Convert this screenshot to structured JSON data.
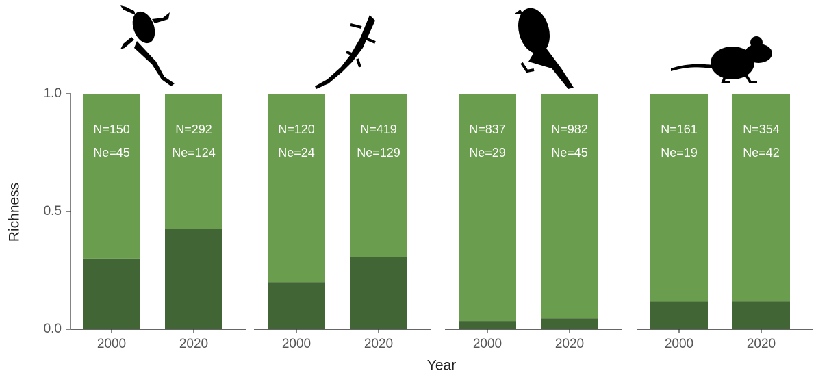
{
  "chart_data": {
    "type": "stacked_bar",
    "ylabel": "Richness",
    "xlabel": "Year",
    "ylim": [
      0,
      1
    ],
    "yticks": [
      {
        "value": 0,
        "label": "0.0"
      },
      {
        "value": 0.5,
        "label": "0.5"
      },
      {
        "value": 1,
        "label": "1.0"
      }
    ],
    "panels": [
      {
        "categories": [
          "2000",
          "2020"
        ],
        "n_labels": [
          "N=150",
          "N=292"
        ],
        "ne_labels": [
          "Ne=45",
          "Ne=124"
        ],
        "series": [
          {
            "color": "#426536",
            "values": [
              0.3,
              0.4247
            ],
            "value_labels": [
              "30 %",
              "42.47 %"
            ]
          },
          {
            "color": "#6a9d4e",
            "values": [
              0.7,
              0.5753
            ]
          }
        ]
      },
      {
        "categories": [
          "2000",
          "2020"
        ],
        "n_labels": [
          "N=120",
          "N=419"
        ],
        "ne_labels": [
          "Ne=24",
          "Ne=129"
        ],
        "series": [
          {
            "color": "#426536",
            "values": [
              0.2,
              0.3079
            ],
            "value_labels": [
              "20 %",
              "30.79 %"
            ]
          },
          {
            "color": "#6a9d4e",
            "values": [
              0.8,
              0.6921
            ]
          }
        ]
      },
      {
        "categories": [
          "2000",
          "2020"
        ],
        "n_labels": [
          "N=837",
          "N=982"
        ],
        "ne_labels": [
          "Ne=29",
          "Ne=45"
        ],
        "series": [
          {
            "color": "#426536",
            "values": [
              0.0346,
              0.0458
            ],
            "value_labels": [
              "3.46 %",
              "4.58 %"
            ]
          },
          {
            "color": "#6a9d4e",
            "values": [
              0.9654,
              0.9542
            ]
          }
        ]
      },
      {
        "categories": [
          "2000",
          "2020"
        ],
        "n_labels": [
          "N=161",
          "N=354"
        ],
        "ne_labels": [
          "Ne=19",
          "Ne=42"
        ],
        "series": [
          {
            "color": "#426536",
            "values": [
              0.118,
              0.1186
            ],
            "value_labels": [
              "11.8 %",
              "11.86 %"
            ]
          },
          {
            "color": "#6a9d4e",
            "values": [
              0.882,
              0.8814
            ]
          }
        ]
      }
    ]
  }
}
